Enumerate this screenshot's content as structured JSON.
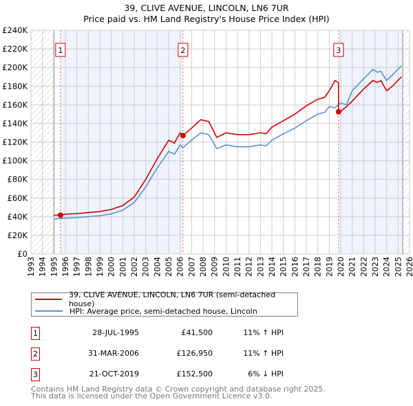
{
  "title": "39, CLIVE AVENUE, LINCOLN, LN6 7UR",
  "subtitle": "Price paid vs. HM Land Registry's House Price Index (HPI)",
  "colors": {
    "property": "#cc0000",
    "hpi": "#5b8fd1",
    "shade": "#eef3fc",
    "grid": "#cccccc"
  },
  "chart_data": {
    "type": "line",
    "title": "39, CLIVE AVENUE, LINCOLN, LN6 7UR",
    "xlim": [
      1993,
      2026
    ],
    "ylim": [
      0,
      240000
    ],
    "x_ticks": [
      "1993",
      "1994",
      "1995",
      "1996",
      "1997",
      "1998",
      "1999",
      "2000",
      "2001",
      "2002",
      "2003",
      "2004",
      "2005",
      "2006",
      "2007",
      "2008",
      "2009",
      "2010",
      "2011",
      "2012",
      "2013",
      "2014",
      "2015",
      "2016",
      "2017",
      "2018",
      "2019",
      "2020",
      "2021",
      "2022",
      "2023",
      "2024",
      "2025",
      "2026"
    ],
    "y_ticks": [
      "£0",
      "£20K",
      "£40K",
      "£60K",
      "£80K",
      "£100K",
      "£120K",
      "£140K",
      "£160K",
      "£180K",
      "£200K",
      "£220K",
      "£240K"
    ],
    "grid": true,
    "data_range": [
      1995,
      2025.4
    ],
    "shaded_periods": [
      [
        1995.57,
        2006.25
      ],
      [
        2019.81,
        2025.4
      ]
    ],
    "series": [
      {
        "name": "39, CLIVE AVENUE, LINCOLN, LN6 7UR (semi-detached house)",
        "x": [
          1995,
          1995.57,
          1996,
          1997,
          1998,
          1999,
          2000,
          2001,
          2002,
          2003,
          2004,
          2005,
          2005.5,
          2006,
          2006.25,
          2007,
          2007.8,
          2008.5,
          2009.2,
          2010,
          2011,
          2012,
          2013,
          2013.5,
          2014,
          2015,
          2016,
          2017,
          2018,
          2018.6,
          2019,
          2019.5,
          2019.8,
          2019.81,
          2020,
          2020.5,
          2021,
          2022,
          2022.8,
          2023.2,
          2023.5,
          2024,
          2024.5,
          2025.3
        ],
        "y": [
          41600,
          41500,
          42700,
          43300,
          44400,
          45500,
          47700,
          52000,
          61000,
          80000,
          102000,
          122000,
          119000,
          130000,
          126950,
          135000,
          144000,
          142000,
          125000,
          130000,
          128000,
          128000,
          130000,
          129000,
          136000,
          143000,
          150000,
          159000,
          166000,
          168000,
          175000,
          186000,
          184000,
          152500,
          153000,
          158000,
          164000,
          177000,
          186000,
          184000,
          186000,
          175000,
          180000,
          190000
        ]
      },
      {
        "name": "HPI: Average price, semi-detached house, Lincoln",
        "x": [
          1995,
          1996,
          1997,
          1998,
          1999,
          2000,
          2001,
          2002,
          2003,
          2004,
          2005,
          2005.5,
          2006,
          2006.25,
          2007,
          2007.8,
          2008.5,
          2009.2,
          2010,
          2011,
          2012,
          2013,
          2013.5,
          2014,
          2015,
          2016,
          2017,
          2018,
          2018.6,
          2019,
          2019.5,
          2020,
          2020.5,
          2021,
          2022,
          2022.8,
          2023.2,
          2023.5,
          2024,
          2024.5,
          2025.3
        ],
        "y": [
          37500,
          38500,
          39000,
          40000,
          41000,
          43000,
          47000,
          55000,
          72000,
          92000,
          110000,
          107000,
          117000,
          114000,
          122000,
          130000,
          128000,
          113000,
          117000,
          115000,
          115000,
          117000,
          116000,
          122000,
          129000,
          135000,
          143000,
          150000,
          152000,
          158000,
          157000,
          162000,
          160000,
          175000,
          188000,
          198000,
          195000,
          196000,
          186000,
          192000,
          202000
        ]
      }
    ],
    "sales": [
      {
        "label": "1",
        "x": 1995.57,
        "y": 41500
      },
      {
        "label": "2",
        "x": 2006.25,
        "y": 126950
      },
      {
        "label": "3",
        "x": 2019.81,
        "y": 152500
      }
    ]
  },
  "legend": {
    "property": "39, CLIVE AVENUE, LINCOLN, LN6 7UR (semi-detached house)",
    "hpi": "HPI: Average price, semi-detached house, Lincoln"
  },
  "transactions": [
    {
      "num": "1",
      "date": "28-JUL-1995",
      "price": "£41,500",
      "hpi": "11% ↑ HPI"
    },
    {
      "num": "2",
      "date": "31-MAR-2006",
      "price": "£126,950",
      "hpi": "11% ↑ HPI"
    },
    {
      "num": "3",
      "date": "21-OCT-2019",
      "price": "£152,500",
      "hpi": "6% ↓ HPI"
    }
  ],
  "footer": {
    "line1": "Contains HM Land Registry data © Crown copyright and database right 2025.",
    "line2": "This data is licensed under the Open Government Licence v3.0."
  }
}
